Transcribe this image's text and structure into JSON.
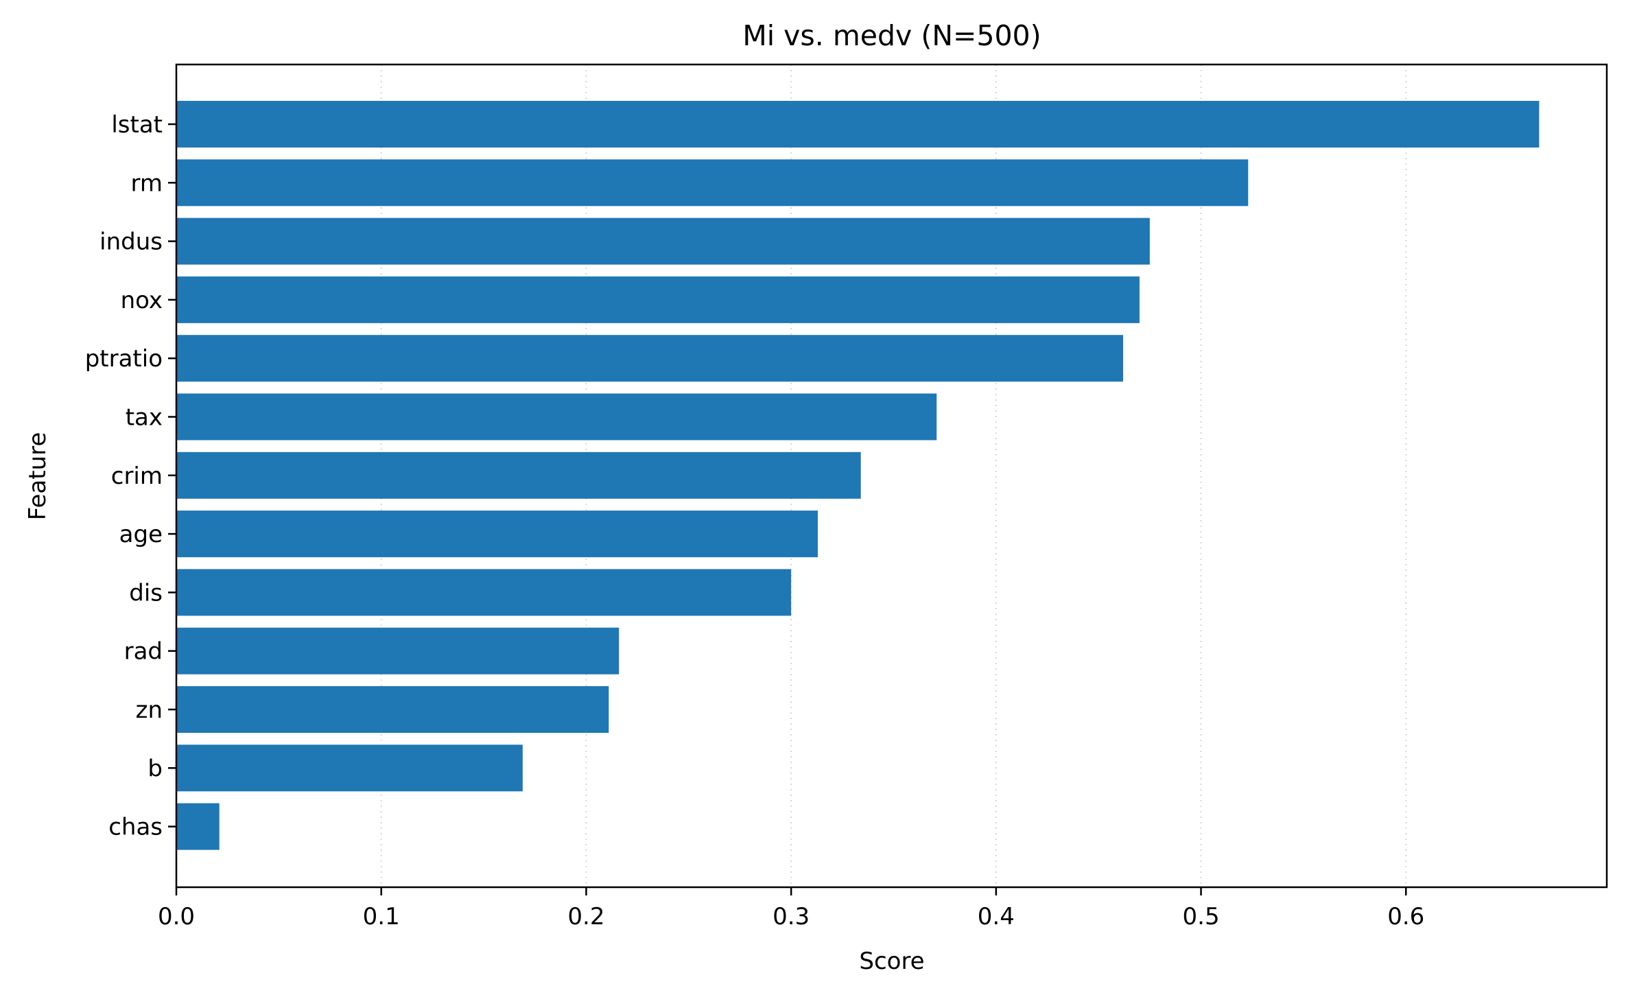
{
  "chart_data": {
    "type": "bar",
    "orientation": "horizontal",
    "title": "Mi vs. medv  (N=500)",
    "xlabel": "Score",
    "ylabel": "Feature",
    "categories": [
      "lstat",
      "rm",
      "indus",
      "nox",
      "ptratio",
      "tax",
      "crim",
      "age",
      "dis",
      "rad",
      "zn",
      "b",
      "chas"
    ],
    "values": [
      0.665,
      0.523,
      0.475,
      0.47,
      0.462,
      0.371,
      0.334,
      0.313,
      0.3,
      0.216,
      0.211,
      0.169,
      0.021
    ],
    "xlim": [
      0,
      0.698
    ],
    "xticks": [
      "0.0",
      "0.1",
      "0.2",
      "0.3",
      "0.4",
      "0.5",
      "0.6"
    ],
    "grid": "vertical dotted",
    "legend": "none",
    "colors": {
      "bar": "#1f77b4",
      "grid": "#d6d6d6",
      "axis": "#000000"
    }
  }
}
